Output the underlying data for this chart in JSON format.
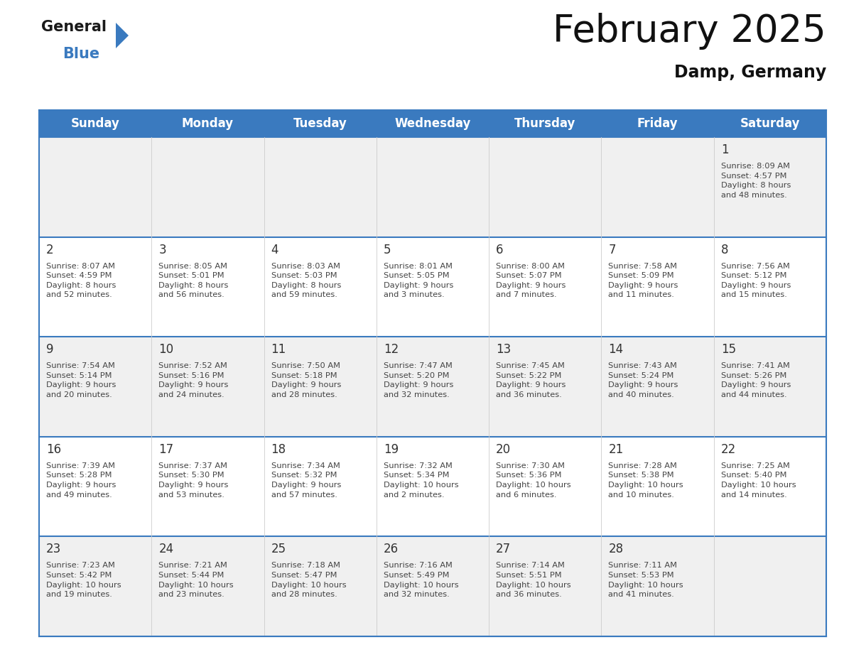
{
  "title": "February 2025",
  "subtitle": "Damp, Germany",
  "header_color": "#3a7abf",
  "header_text_color": "#ffffff",
  "days_of_week": [
    "Sunday",
    "Monday",
    "Tuesday",
    "Wednesday",
    "Thursday",
    "Friday",
    "Saturday"
  ],
  "cell_bg_even": "#f0f0f0",
  "cell_bg_odd": "#ffffff",
  "day_number_color": "#333333",
  "info_text_color": "#444444",
  "border_color": "#3a7abf",
  "line_color": "#3a7abf",
  "title_color": "#111111",
  "subtitle_color": "#111111",
  "weeks": [
    [
      {
        "day": null
      },
      {
        "day": null
      },
      {
        "day": null
      },
      {
        "day": null
      },
      {
        "day": null
      },
      {
        "day": null
      },
      {
        "day": 1,
        "sunrise": "8:09 AM",
        "sunset": "4:57 PM",
        "daylight": "8 hours\nand 48 minutes."
      }
    ],
    [
      {
        "day": 2,
        "sunrise": "8:07 AM",
        "sunset": "4:59 PM",
        "daylight": "8 hours\nand 52 minutes."
      },
      {
        "day": 3,
        "sunrise": "8:05 AM",
        "sunset": "5:01 PM",
        "daylight": "8 hours\nand 56 minutes."
      },
      {
        "day": 4,
        "sunrise": "8:03 AM",
        "sunset": "5:03 PM",
        "daylight": "8 hours\nand 59 minutes."
      },
      {
        "day": 5,
        "sunrise": "8:01 AM",
        "sunset": "5:05 PM",
        "daylight": "9 hours\nand 3 minutes."
      },
      {
        "day": 6,
        "sunrise": "8:00 AM",
        "sunset": "5:07 PM",
        "daylight": "9 hours\nand 7 minutes."
      },
      {
        "day": 7,
        "sunrise": "7:58 AM",
        "sunset": "5:09 PM",
        "daylight": "9 hours\nand 11 minutes."
      },
      {
        "day": 8,
        "sunrise": "7:56 AM",
        "sunset": "5:12 PM",
        "daylight": "9 hours\nand 15 minutes."
      }
    ],
    [
      {
        "day": 9,
        "sunrise": "7:54 AM",
        "sunset": "5:14 PM",
        "daylight": "9 hours\nand 20 minutes."
      },
      {
        "day": 10,
        "sunrise": "7:52 AM",
        "sunset": "5:16 PM",
        "daylight": "9 hours\nand 24 minutes."
      },
      {
        "day": 11,
        "sunrise": "7:50 AM",
        "sunset": "5:18 PM",
        "daylight": "9 hours\nand 28 minutes."
      },
      {
        "day": 12,
        "sunrise": "7:47 AM",
        "sunset": "5:20 PM",
        "daylight": "9 hours\nand 32 minutes."
      },
      {
        "day": 13,
        "sunrise": "7:45 AM",
        "sunset": "5:22 PM",
        "daylight": "9 hours\nand 36 minutes."
      },
      {
        "day": 14,
        "sunrise": "7:43 AM",
        "sunset": "5:24 PM",
        "daylight": "9 hours\nand 40 minutes."
      },
      {
        "day": 15,
        "sunrise": "7:41 AM",
        "sunset": "5:26 PM",
        "daylight": "9 hours\nand 44 minutes."
      }
    ],
    [
      {
        "day": 16,
        "sunrise": "7:39 AM",
        "sunset": "5:28 PM",
        "daylight": "9 hours\nand 49 minutes."
      },
      {
        "day": 17,
        "sunrise": "7:37 AM",
        "sunset": "5:30 PM",
        "daylight": "9 hours\nand 53 minutes."
      },
      {
        "day": 18,
        "sunrise": "7:34 AM",
        "sunset": "5:32 PM",
        "daylight": "9 hours\nand 57 minutes."
      },
      {
        "day": 19,
        "sunrise": "7:32 AM",
        "sunset": "5:34 PM",
        "daylight": "10 hours\nand 2 minutes."
      },
      {
        "day": 20,
        "sunrise": "7:30 AM",
        "sunset": "5:36 PM",
        "daylight": "10 hours\nand 6 minutes."
      },
      {
        "day": 21,
        "sunrise": "7:28 AM",
        "sunset": "5:38 PM",
        "daylight": "10 hours\nand 10 minutes."
      },
      {
        "day": 22,
        "sunrise": "7:25 AM",
        "sunset": "5:40 PM",
        "daylight": "10 hours\nand 14 minutes."
      }
    ],
    [
      {
        "day": 23,
        "sunrise": "7:23 AM",
        "sunset": "5:42 PM",
        "daylight": "10 hours\nand 19 minutes."
      },
      {
        "day": 24,
        "sunrise": "7:21 AM",
        "sunset": "5:44 PM",
        "daylight": "10 hours\nand 23 minutes."
      },
      {
        "day": 25,
        "sunrise": "7:18 AM",
        "sunset": "5:47 PM",
        "daylight": "10 hours\nand 28 minutes."
      },
      {
        "day": 26,
        "sunrise": "7:16 AM",
        "sunset": "5:49 PM",
        "daylight": "10 hours\nand 32 minutes."
      },
      {
        "day": 27,
        "sunrise": "7:14 AM",
        "sunset": "5:51 PM",
        "daylight": "10 hours\nand 36 minutes."
      },
      {
        "day": 28,
        "sunrise": "7:11 AM",
        "sunset": "5:53 PM",
        "daylight": "10 hours\nand 41 minutes."
      },
      {
        "day": null
      }
    ]
  ]
}
